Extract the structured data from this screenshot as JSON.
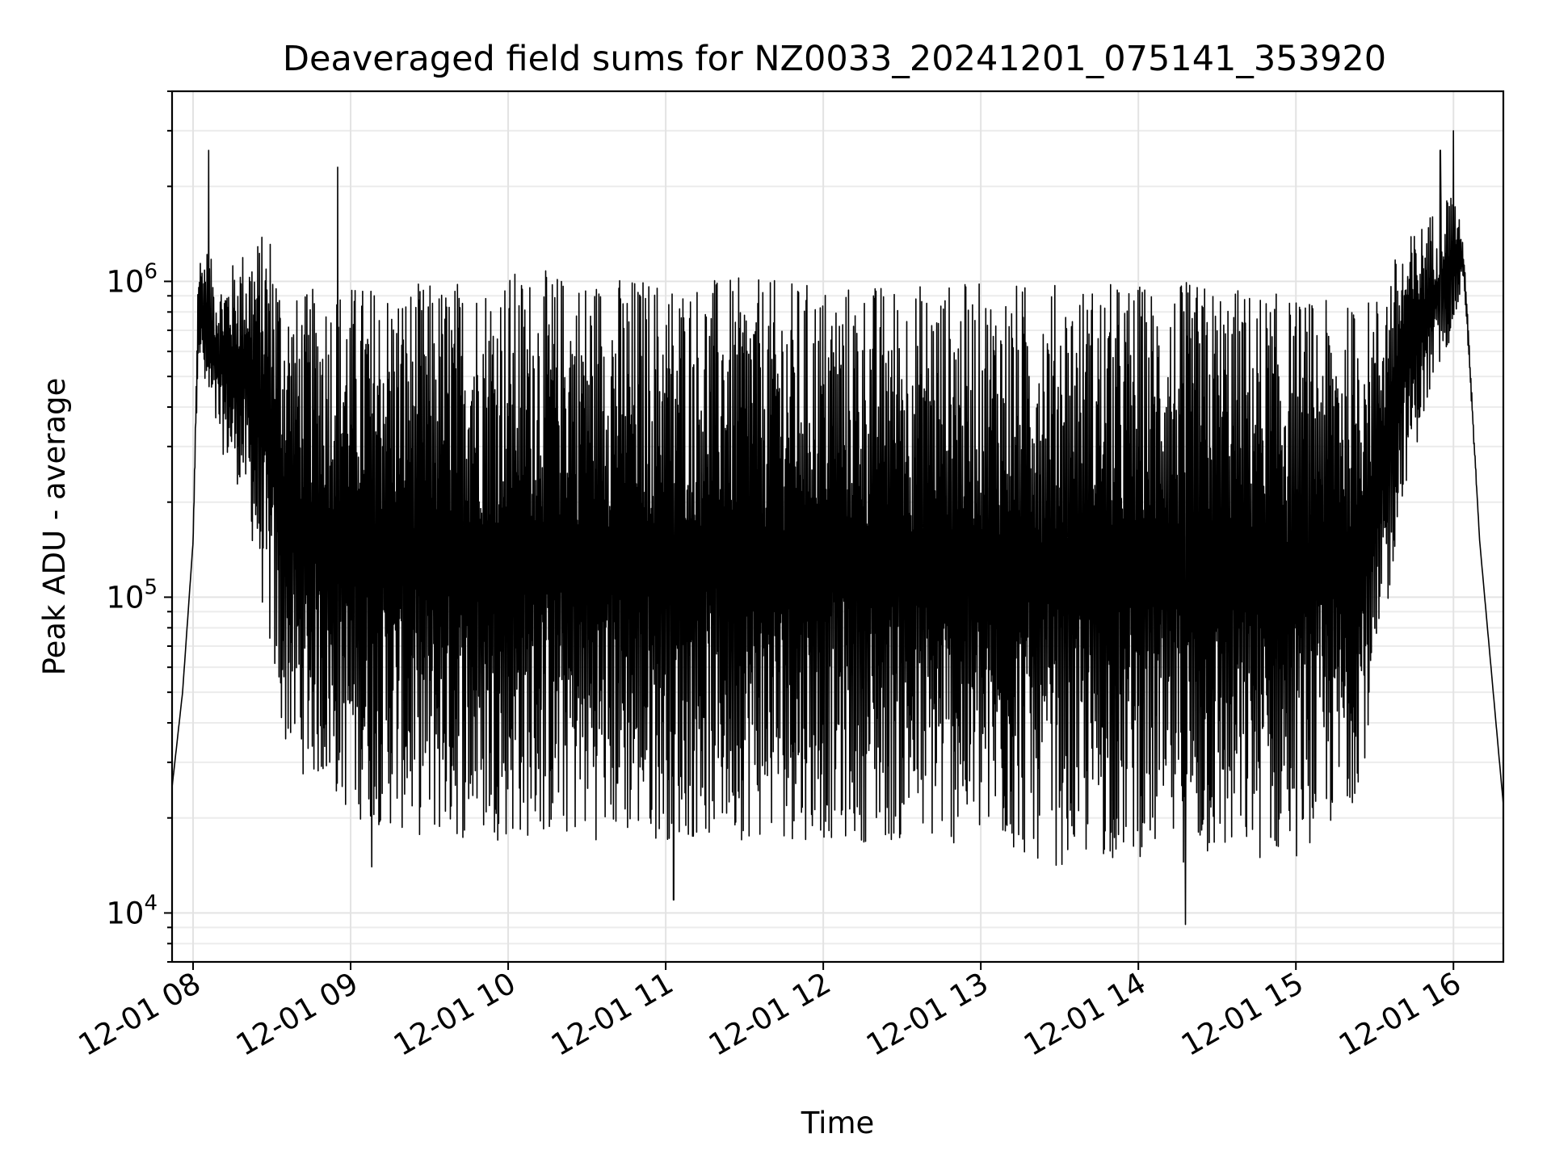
{
  "chart_data": {
    "type": "line",
    "title": "Deaveraged field sums for NZ0033_20241201_075141_353920",
    "xlabel": "Time",
    "ylabel": "Peak ADU - average",
    "y_scale": "log",
    "grid": true,
    "line_color": "#000000",
    "x_range": [
      "2024-12-01 07:52",
      "2024-12-01 16:19"
    ],
    "ylim": [
      7000,
      4000000
    ],
    "x_ticks": [
      "12-01 08",
      "12-01 09",
      "12-01 10",
      "12-01 11",
      "12-01 12",
      "12-01 13",
      "12-01 14",
      "12-01 15",
      "12-01 16"
    ],
    "y_ticks": [
      {
        "base": "10",
        "exp": "4",
        "value": 10000
      },
      {
        "base": "10",
        "exp": "5",
        "value": 100000
      },
      {
        "base": "10",
        "exp": "6",
        "value": 1000000
      }
    ],
    "envelope": {
      "x": [
        "07:52",
        "07:56",
        "08:00",
        "08:02",
        "08:05",
        "08:10",
        "08:20",
        "08:30",
        "08:34",
        "08:40",
        "08:50",
        "09:00",
        "09:30",
        "10:00",
        "11:00",
        "12:00",
        "13:00",
        "13:30",
        "14:00",
        "14:30",
        "15:00",
        "15:20",
        "15:30",
        "15:40",
        "15:50",
        "16:00",
        "16:04",
        "16:10",
        "16:19"
      ],
      "peak": [
        25000,
        50000,
        150000,
        1200000,
        1300000,
        1000000,
        1300000,
        1500000,
        1000000,
        900000,
        1000000,
        1000000,
        1000000,
        1100000,
        1050000,
        1000000,
        1000000,
        1000000,
        1000000,
        1000000,
        900000,
        850000,
        900000,
        1300000,
        1600000,
        2000000,
        1300000,
        150000,
        22000
      ],
      "trough": [
        25000,
        50000,
        150000,
        600000,
        400000,
        300000,
        200000,
        60000,
        35000,
        28000,
        25000,
        20000,
        17000,
        17000,
        17000,
        17000,
        16000,
        14000,
        15000,
        14000,
        15000,
        20000,
        40000,
        200000,
        400000,
        700000,
        1000000,
        150000,
        22000
      ]
    },
    "spikes": [
      {
        "x": "08:06",
        "y": 2600000
      },
      {
        "x": "08:55",
        "y": 2300000
      },
      {
        "x": "09:08",
        "y": 14000
      },
      {
        "x": "11:03",
        "y": 11000
      },
      {
        "x": "14:18",
        "y": 9200
      },
      {
        "x": "15:55",
        "y": 2600000
      },
      {
        "x": "16:00",
        "y": 3000000
      }
    ]
  }
}
